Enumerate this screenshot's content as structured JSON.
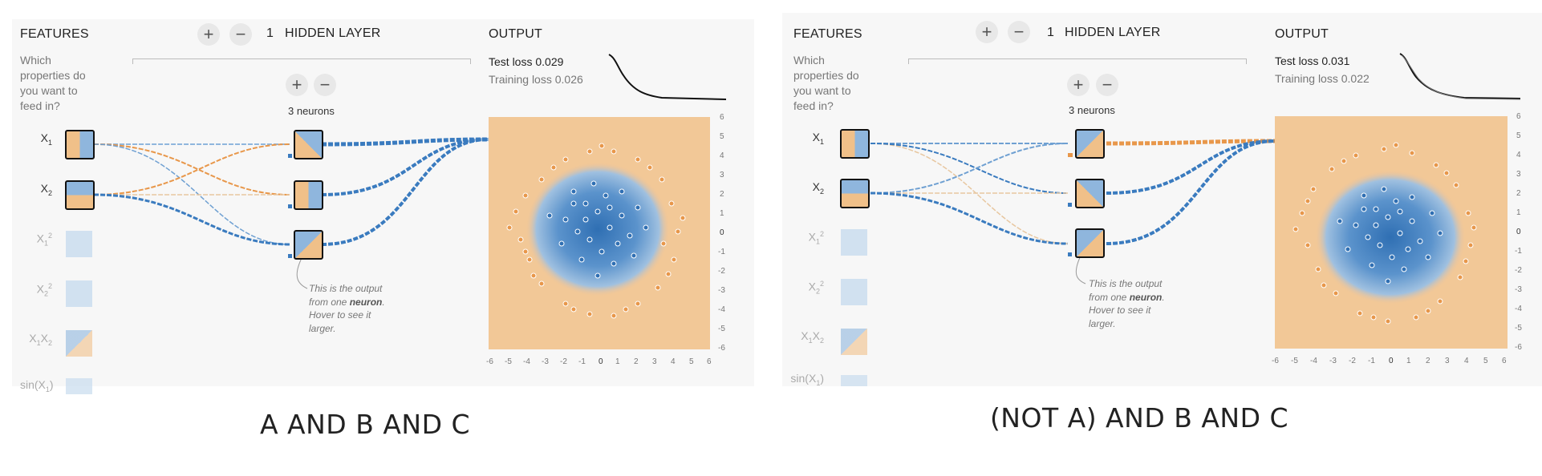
{
  "panels": [
    {
      "features_title": "FEATURES",
      "features_question": "Which properties do you want to feed in?",
      "layer_count": "1",
      "hidden_layer_label": "HIDDEN LAYER",
      "neurons_label": "3 neurons",
      "output_title": "OUTPUT",
      "test_loss": "Test loss 0.029",
      "training_loss": "Training loss 0.026",
      "features": [
        {
          "label": "X1",
          "active": true
        },
        {
          "label": "X2",
          "active": true
        },
        {
          "label": "X1^2",
          "active": false
        },
        {
          "label": "X2^2",
          "active": false
        },
        {
          "label": "X1X2",
          "active": false
        },
        {
          "label": "sin(X1)",
          "active": false
        }
      ],
      "note": "This is the output from one neuron. Hover to see it larger.",
      "caption": "A AND B AND C"
    },
    {
      "features_title": "FEATURES",
      "features_question": "Which properties do you want to feed in?",
      "layer_count": "1",
      "hidden_layer_label": "HIDDEN LAYER",
      "neurons_label": "3 neurons",
      "output_title": "OUTPUT",
      "test_loss": "Test loss 0.031",
      "training_loss": "Training loss 0.022",
      "features": [
        {
          "label": "X1",
          "active": true
        },
        {
          "label": "X2",
          "active": true
        },
        {
          "label": "X1^2",
          "active": false
        },
        {
          "label": "X2^2",
          "active": false
        },
        {
          "label": "X1X2",
          "active": false
        },
        {
          "label": "sin(X1)",
          "active": false
        }
      ],
      "note": "This is the output from one neuron. Hover to see it larger.",
      "caption": "(NOT A) AND B AND C"
    }
  ],
  "axis_ticks": [
    "6",
    "5",
    "4",
    "3",
    "2",
    "1",
    "0",
    "-1",
    "-2",
    "-3",
    "-4",
    "-5",
    "-6"
  ],
  "x_ticks": [
    "-6",
    "-5",
    "-4",
    "-3",
    "-2",
    "-1",
    "0",
    "1",
    "2",
    "3",
    "4",
    "5",
    "6"
  ],
  "colors": {
    "blue": "#3a7bbf",
    "orange": "#e8974a",
    "panel": "#f7f7f7",
    "blue_light": "#8fb6dd",
    "orange_light": "#f0c089"
  }
}
